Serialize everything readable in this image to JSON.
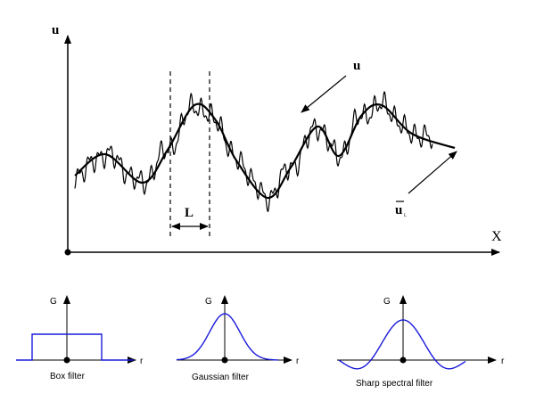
{
  "main_plot": {
    "y_axis_label": "u",
    "x_axis_label": "X",
    "width_label": "L",
    "raw_signal_label": "u",
    "filtered_signal_label": "u",
    "filtered_signal_subscript": "L"
  },
  "filters": [
    {
      "name": "box",
      "y_label": "G",
      "x_label": "r",
      "caption": "Box filter"
    },
    {
      "name": "gaussian",
      "y_label": "G",
      "x_label": "r",
      "caption": "Gaussian filter"
    },
    {
      "name": "sharp-spectral",
      "y_label": "G",
      "x_label": "r",
      "caption": "Sharp spectral filter"
    }
  ],
  "colors": {
    "curve": "#000000",
    "filter": "#1a1adb",
    "axis": "#000000"
  }
}
